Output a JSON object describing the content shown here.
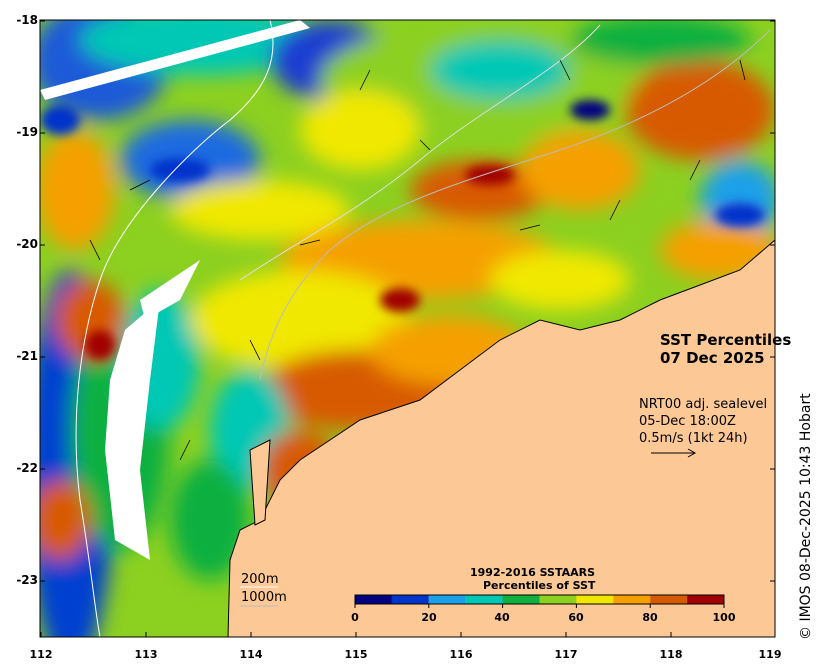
{
  "title": {
    "line1": "SST Percentiles",
    "line2": "07 Dec 2025"
  },
  "current_info": {
    "line1": "NRT00 adj. sealevel",
    "line2": "05-Dec 18:00Z",
    "line3": "0.5m/s (1kt 24h)"
  },
  "isobaths": {
    "shallow": "200m",
    "deep": "1000m"
  },
  "credit": "© IMOS 08-Dec-2025 10:43 Hobart",
  "colorbar": {
    "title_line1": "1992-2016 SSTAARS",
    "title_line2": "Percentiles of SST",
    "ticks": [
      "0",
      "20",
      "40",
      "60",
      "80",
      "100"
    ],
    "colors": [
      "#000080",
      "#0033cc",
      "#1aa0e8",
      "#00c8b4",
      "#10b040",
      "#8cd020",
      "#f0e800",
      "#f5a000",
      "#d85a00",
      "#a00000"
    ]
  },
  "axes": {
    "lat_ticks": [
      "-18",
      "-19",
      "-20",
      "-21",
      "-22",
      "-23"
    ],
    "lon_ticks": [
      "112",
      "113",
      "114",
      "115",
      "116",
      "117",
      "118",
      "119"
    ]
  },
  "colors": {
    "land": "#fcc896",
    "no_data": "#ffffff"
  }
}
